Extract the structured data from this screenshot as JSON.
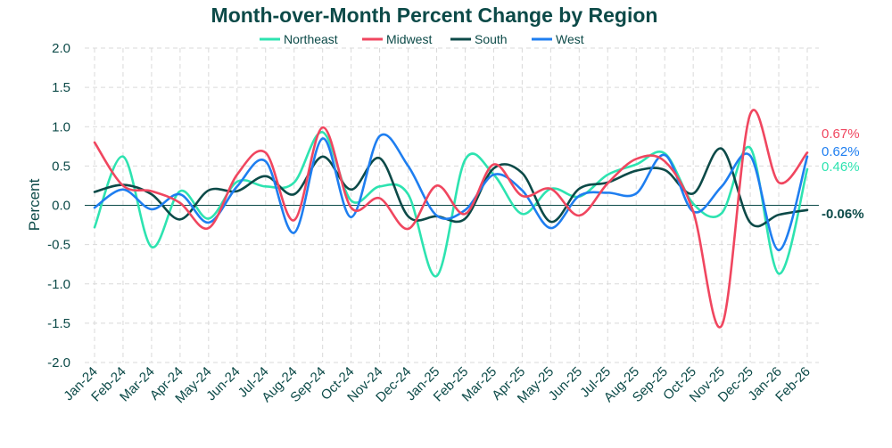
{
  "chart_data": {
    "type": "line",
    "title": "Month-over-Month Percent Change by Region",
    "xlabel": "",
    "ylabel": "Percent",
    "ylim": [
      -2.0,
      2.0
    ],
    "yticks": [
      "2.0",
      "1.5",
      "1.0",
      "0.5",
      "0.0",
      "-0.5",
      "-1.0",
      "-1.5",
      "-2.0"
    ],
    "grid": true,
    "legend_position": "top-center",
    "categories": [
      "Jan-24",
      "Feb-24",
      "Mar-24",
      "Apr-24",
      "May-24",
      "Jun-24",
      "Jul-24",
      "Aug-24",
      "Sep-24",
      "Oct-24",
      "Nov-24",
      "Dec-24",
      "Jan-25",
      "Feb-25",
      "Mar-25",
      "Apr-25",
      "May-25",
      "Jun-25",
      "Jul-25",
      "Aug-25",
      "Sep-25",
      "Oct-25",
      "Nov-25",
      "Dec-25",
      "Jan-26",
      "Feb-26"
    ],
    "series": [
      {
        "name": "Northeast",
        "color": "#2de3b0",
        "end_label": "0.46%",
        "values": [
          -0.28,
          0.62,
          -0.53,
          0.18,
          -0.17,
          0.3,
          0.24,
          0.29,
          0.93,
          0.06,
          0.24,
          0.14,
          -0.9,
          0.58,
          0.39,
          -0.11,
          0.21,
          0.11,
          0.39,
          0.52,
          0.66,
          0.02,
          -0.1,
          0.73,
          -0.87,
          0.46
        ]
      },
      {
        "name": "Midwest",
        "color": "#f0465f",
        "end_label": "0.67%",
        "values": [
          0.8,
          0.25,
          0.18,
          0.03,
          -0.29,
          0.39,
          0.67,
          -0.19,
          0.99,
          -0.03,
          0.09,
          -0.3,
          0.25,
          -0.11,
          0.52,
          0.12,
          0.21,
          -0.13,
          0.28,
          0.59,
          0.56,
          -0.08,
          -1.53,
          1.16,
          0.29,
          0.67
        ]
      },
      {
        "name": "South",
        "color": "#0c4a48",
        "end_label": "-0.06%",
        "values": [
          0.17,
          0.26,
          0.14,
          -0.18,
          0.19,
          0.18,
          0.37,
          0.14,
          0.62,
          0.2,
          0.6,
          -0.14,
          -0.14,
          -0.17,
          0.47,
          0.41,
          -0.21,
          0.21,
          0.29,
          0.44,
          0.45,
          0.15,
          0.72,
          -0.22,
          -0.12,
          -0.06
        ]
      },
      {
        "name": "West",
        "color": "#1e7ef0",
        "end_label": "0.62%",
        "values": [
          -0.03,
          0.2,
          -0.05,
          0.14,
          -0.22,
          0.24,
          0.56,
          -0.35,
          0.85,
          -0.15,
          0.88,
          0.5,
          -0.13,
          -0.06,
          0.39,
          0.19,
          -0.29,
          0.12,
          0.16,
          0.15,
          0.64,
          -0.08,
          0.24,
          0.63,
          -0.57,
          0.62
        ]
      }
    ]
  },
  "colors": {
    "title": "#0c4a48",
    "axis_text": "#0c4a48",
    "grid": "#d9d9d9",
    "zero_line": "#0c4a48"
  }
}
